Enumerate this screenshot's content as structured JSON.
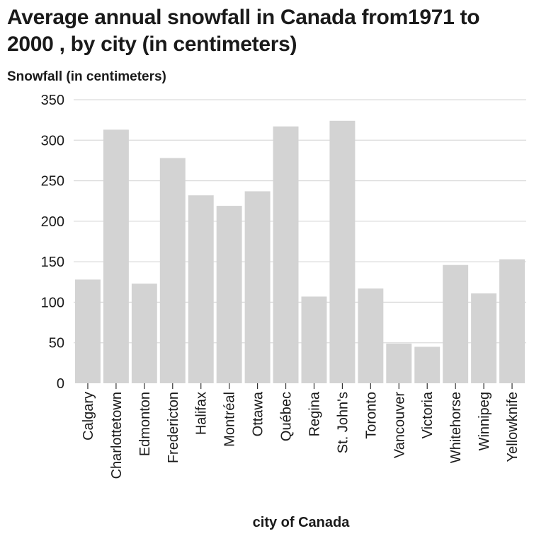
{
  "chart_data": {
    "type": "bar",
    "title": "Average annual snowfall in Canada from1971 to 2000 , by city (in centimeters)",
    "xlabel": "city of Canada",
    "ylabel": "Snowfall (in centimeters)",
    "ylim": [
      0,
      350
    ],
    "yticks": [
      0,
      50,
      100,
      150,
      200,
      250,
      300,
      350
    ],
    "grid": true,
    "bar_color": "#d3d3d3",
    "grid_color": "#dcdcdc",
    "categories": [
      "Calgary",
      "Charlottetown",
      "Edmonton",
      "Fredericton",
      "Halifax",
      "Montréal",
      "Ottawa",
      "Québec",
      "Regina",
      "St. John's",
      "Toronto",
      "Vancouver",
      "Victoria",
      "Whitehorse",
      "Winnipeg",
      "Yellowknife"
    ],
    "values": [
      128,
      313,
      123,
      278,
      232,
      219,
      237,
      317,
      107,
      324,
      117,
      49,
      45,
      146,
      111,
      153
    ]
  }
}
